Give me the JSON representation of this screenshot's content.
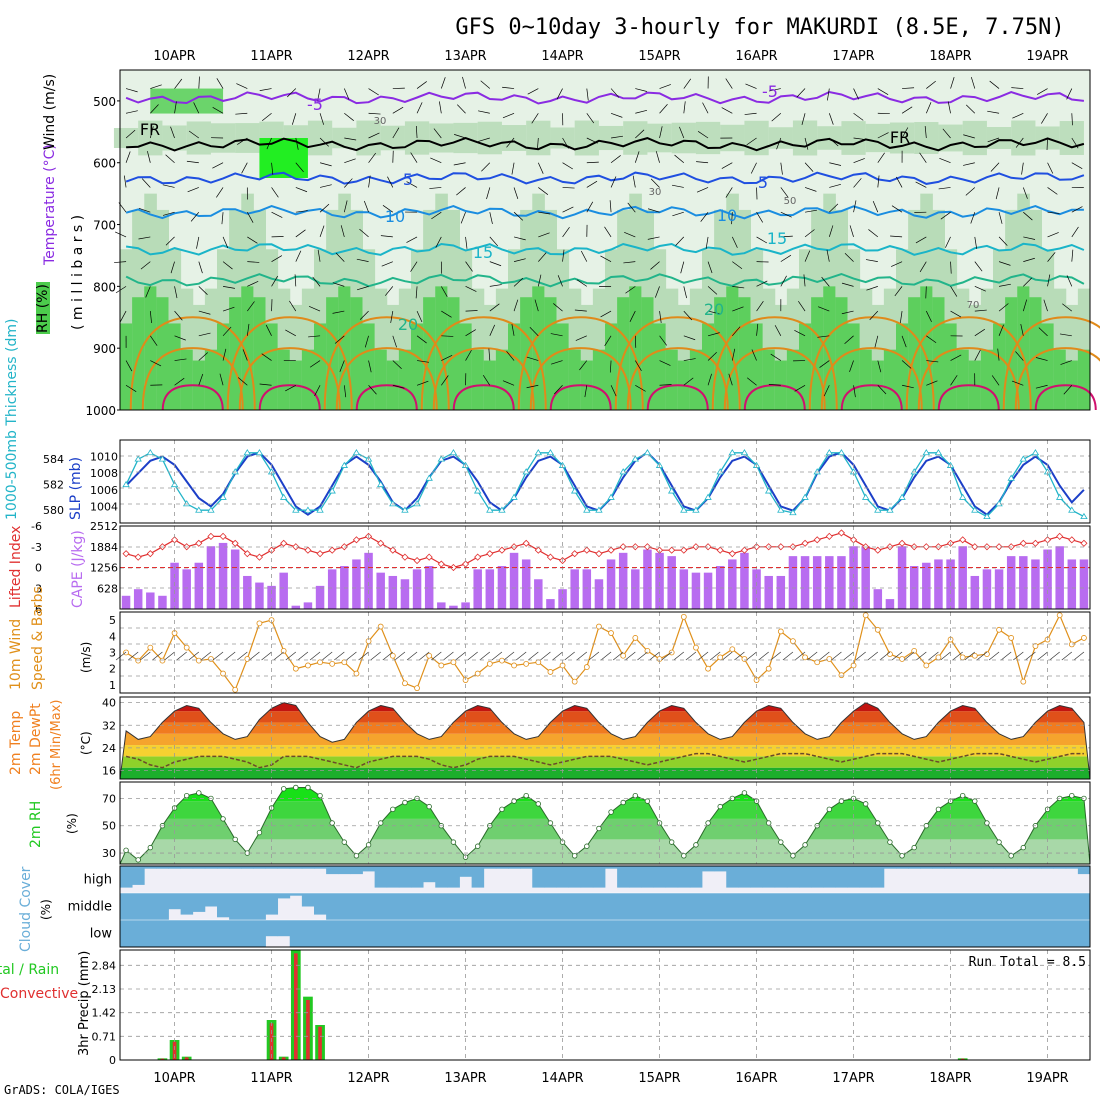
{
  "title": "GFS 0~10day 3-hourly for MAKURDI (8.5E, 7.75N)",
  "footer": "GrADS: COLA/IGES",
  "dates": [
    "10APR",
    "11APR",
    "12APR",
    "13APR",
    "14APR",
    "15APR",
    "16APR",
    "17APR",
    "18APR",
    "19APR"
  ],
  "colors": {
    "rh_dark": "#4ccc4c",
    "rh_mid": "#b8dcb8",
    "rh_light": "#e6f2e6",
    "rh_bright": "#22ee22",
    "t_neg": "#8a2be2",
    "t_zero": "#000000",
    "t_5": "#1f4fe0",
    "t_10": "#1a8de0",
    "t_15": "#1ab4c8",
    "t_20": "#22b48a",
    "t_25": "#e08a1a",
    "t_30": "#d0106e",
    "slp": "#1c3fc8",
    "thick": "#22b4c8",
    "cape": "#b86cf0",
    "li": "#e03030",
    "wind": "#e0901a",
    "temp_fill": "#f08020",
    "rh2m": "#22c822",
    "cloud": "#6aaed8",
    "cloud_bg": "#f0eff7",
    "precip_total": "#22c822",
    "precip_conv": "#e03030"
  },
  "panels": {
    "upper": {
      "ylabels": [
        "RH (%)",
        "Temperature (°C)",
        "Wind (m/s)",
        "( m i l l i b a r s )"
      ],
      "yticks": [
        "500",
        "600",
        "700",
        "800",
        "900",
        "1000"
      ],
      "contour_labels": [
        "-5",
        "-5",
        "FR",
        "FR",
        "5",
        "5",
        "10",
        "10",
        "15",
        "15",
        "20",
        "20",
        "30",
        "30",
        "50",
        "70"
      ]
    },
    "slp": {
      "ylabel_left": "1000-500mb Thickness (dm)",
      "ylabel_right": "SLP (mb)",
      "yticks_left": [
        "584",
        "582",
        "580"
      ],
      "yticks_right": [
        "1010",
        "1008",
        "1006",
        "1004"
      ]
    },
    "cape": {
      "ylabel_left": "Lifted Index",
      "ylabel_right": "CAPE (J/kg)",
      "yticks_left": [
        "-6",
        "-3",
        "0",
        "3",
        "6"
      ],
      "yticks_right": [
        "2512",
        "1884",
        "1256",
        "628"
      ]
    },
    "wind": {
      "ylabel1": "10m Wind",
      "ylabel2": "Speed & Barbs",
      "unit": "(m/s)",
      "yticks": [
        "5",
        "4",
        "3",
        "2",
        "1"
      ]
    },
    "temp": {
      "ylabel1": "2m Temp",
      "ylabel2": "2m DewPt",
      "ylabel3": "(6hr Min/Max)",
      "unit": "(°C)",
      "yticks": [
        "40",
        "32",
        "24",
        "16"
      ]
    },
    "rh": {
      "ylabel": "2m RH",
      "unit": "(%)",
      "yticks": [
        "70",
        "50",
        "30"
      ]
    },
    "cloud": {
      "ylabel": "Cloud Cover",
      "unit": "(%)",
      "levels": [
        "high",
        "middle",
        "low"
      ]
    },
    "precip": {
      "ylabel1": "Total / Rain",
      "ylabel2": "Convective",
      "ylabel3": "3hr Precip (mm)",
      "yticks": [
        "2.84",
        "2.13",
        "1.42",
        "0.71",
        "0"
      ],
      "run_total": "Run Total = 8.5"
    }
  },
  "chart_data": {
    "type": "meteogram",
    "time_step_hours": 3,
    "n_steps": 80,
    "slp": {
      "name": "SLP (mb)",
      "ylim": [
        1002,
        1012
      ],
      "values": [
        1006.5,
        1008,
        1009.5,
        1010,
        1009,
        1007,
        1005,
        1004,
        1005.5,
        1008,
        1010,
        1010.5,
        1009,
        1006.5,
        1004,
        1003,
        1004,
        1006.5,
        1009,
        1010,
        1009,
        1007,
        1004.5,
        1003.5,
        1005,
        1007.5,
        1009.5,
        1010,
        1009,
        1007,
        1004.5,
        1003.5,
        1005,
        1007.5,
        1009.5,
        1010,
        1009,
        1006.5,
        1004,
        1003.5,
        1005,
        1007.5,
        1009.5,
        1010.5,
        1009,
        1006.5,
        1004,
        1003.5,
        1005,
        1007.5,
        1009.5,
        1010,
        1009,
        1006.5,
        1004,
        1003.5,
        1005,
        1008,
        1010,
        1010.5,
        1009,
        1006.5,
        1004,
        1003.5,
        1005,
        1007.5,
        1009.5,
        1010,
        1009,
        1006.5,
        1004,
        1003,
        1004.5,
        1007,
        1009,
        1010,
        1009,
        1006.5,
        1004.5,
        1006
      ]
    },
    "thickness": {
      "name": "1000-500mb Thickness (dm)",
      "ylim": [
        579,
        585.5
      ],
      "values": [
        582,
        584,
        584.5,
        584,
        582,
        580.5,
        580,
        580,
        581,
        583,
        584.5,
        584.5,
        583,
        581,
        580,
        580,
        580,
        581.5,
        583.5,
        584.5,
        584,
        582,
        580.5,
        580,
        580.5,
        582.5,
        584,
        584.5,
        583.5,
        581.5,
        580,
        580,
        581,
        583,
        584.5,
        584.5,
        583.5,
        581.5,
        580,
        580,
        581,
        583,
        584,
        584.5,
        583.5,
        581.5,
        580,
        580,
        581,
        583,
        584.5,
        584.5,
        583.5,
        581.5,
        580,
        579.8,
        581,
        583,
        584.5,
        584.5,
        583,
        581,
        580,
        580,
        581,
        583,
        584.5,
        584.5,
        583.5,
        581,
        580,
        579.5,
        580.5,
        582.5,
        584,
        584.5,
        583,
        581,
        580,
        579.5
      ]
    },
    "cape": {
      "name": "CAPE (J/kg)",
      "ylim": [
        0,
        2512
      ],
      "values": [
        400,
        600,
        500,
        400,
        1400,
        1200,
        1400,
        1900,
        2000,
        1800,
        1000,
        800,
        700,
        1100,
        100,
        200,
        700,
        1200,
        1300,
        1500,
        1700,
        1100,
        1000,
        900,
        1200,
        1300,
        200,
        100,
        200,
        1200,
        1200,
        1300,
        1700,
        1500,
        900,
        300,
        600,
        1200,
        1200,
        900,
        1500,
        1700,
        1200,
        1800,
        1700,
        1600,
        1200,
        1100,
        1100,
        1300,
        1500,
        1700,
        1200,
        1000,
        1000,
        1600,
        1600,
        1600,
        1600,
        1600,
        1900,
        1900,
        600,
        300,
        1900,
        1300,
        1400,
        1500,
        1500,
        1900,
        1000,
        1200,
        1200,
        1600,
        1600,
        1500,
        1800,
        1900,
        1500,
        1500
      ]
    },
    "lifted_index": {
      "name": "Lifted Index",
      "ylim": [
        6,
        -6
      ],
      "values": [
        -2,
        -1.5,
        -2,
        -3,
        -4,
        -3,
        -3.5,
        -4.5,
        -4.5,
        -3.5,
        -2,
        -1.5,
        -2.5,
        -3.5,
        -3,
        -2.5,
        -2,
        -2.5,
        -3,
        -4,
        -4.5,
        -3.5,
        -2.5,
        -1.5,
        -1,
        -1.5,
        -0.5,
        0,
        -0.5,
        -1.5,
        -2,
        -2.5,
        -3,
        -3.5,
        -2.5,
        -1.5,
        -1,
        -2,
        -2.5,
        -2,
        -2.5,
        -3,
        -3,
        -3,
        -2.5,
        -2.5,
        -2.5,
        -3,
        -3,
        -2.5,
        -2,
        -2.5,
        -3,
        -3,
        -3,
        -3,
        -3.5,
        -4,
        -4.5,
        -5,
        -4,
        -3,
        -2.5,
        -3,
        -3.5,
        -3,
        -3,
        -3,
        -3.5,
        -4,
        -3,
        -3,
        -3,
        -3,
        -3.5,
        -3.5,
        -4,
        -4.5,
        -4,
        -3.5
      ]
    },
    "wind_speed": {
      "name": "10m Wind Speed (m/s)",
      "ylim": [
        0.5,
        5.5
      ],
      "values": [
        3,
        2.5,
        3.3,
        2.5,
        4.2,
        3.3,
        2.5,
        2.6,
        1.7,
        0.7,
        2.6,
        4.8,
        5,
        3.1,
        2,
        2.2,
        2.4,
        2.3,
        2.4,
        1.7,
        3.7,
        4.6,
        2.8,
        1.1,
        0.8,
        2.8,
        2.2,
        2.4,
        1.3,
        1.7,
        2.3,
        2.5,
        2.2,
        2.3,
        2.4,
        1.8,
        2.2,
        1.2,
        2.1,
        4.6,
        4.2,
        2.8,
        3.9,
        3.1,
        2.6,
        3,
        5.2,
        3.3,
        2,
        2.7,
        3.2,
        2.6,
        1.3,
        2,
        4.3,
        3.7,
        2.7,
        2.4,
        2.6,
        1.6,
        2.2,
        5.3,
        4.4,
        2.9,
        2.6,
        3.1,
        2.2,
        2.7,
        3.8,
        2.7,
        2.8,
        2.9,
        4.4,
        3.9,
        1.2,
        3.4,
        3.8,
        5.3,
        3.5,
        3.9
      ]
    },
    "temp_2m": {
      "name": "2m Temp (°C)",
      "ylim": [
        13,
        42
      ],
      "values": [
        30,
        27,
        28,
        33,
        37,
        39,
        38,
        33,
        29,
        27,
        28,
        34,
        38,
        40,
        39,
        33,
        28,
        26,
        27,
        33,
        37,
        39,
        38,
        33,
        29,
        27,
        28,
        33,
        37,
        39,
        38,
        33,
        29,
        27,
        28,
        33,
        37,
        39,
        38,
        33,
        29,
        27,
        28,
        33,
        37,
        39,
        38,
        33,
        29,
        27,
        28,
        33,
        37,
        39,
        38,
        33,
        29,
        27,
        28,
        33,
        37,
        40,
        38,
        33,
        29,
        27,
        28,
        33,
        37,
        39,
        38,
        33,
        29,
        27,
        28,
        33,
        37,
        39,
        38,
        33
      ]
    },
    "dewpt_2m": {
      "name": "2m DewPt (°C)",
      "ylim": [
        13,
        42
      ],
      "values": [
        21,
        20,
        18,
        17,
        19,
        20,
        21,
        21,
        21,
        20,
        19,
        17,
        18,
        21,
        21,
        21,
        20,
        19,
        18,
        17,
        19,
        20,
        21,
        21,
        21,
        20,
        18,
        17,
        18,
        20,
        21,
        21,
        21,
        20,
        19,
        18,
        19,
        20,
        21,
        21,
        21,
        20,
        19,
        18,
        19,
        20,
        21,
        22,
        22,
        21,
        20,
        19,
        20,
        21,
        22,
        22,
        22,
        21,
        20,
        19,
        20,
        21,
        22,
        22,
        22,
        21,
        20,
        19,
        20,
        21,
        22,
        22,
        22,
        21,
        20,
        19,
        20,
        21,
        22,
        22
      ]
    },
    "rh_2m": {
      "name": "2m RH (%)",
      "ylim": [
        22,
        82
      ],
      "values": [
        32,
        25,
        34,
        50,
        63,
        72,
        74,
        70,
        55,
        40,
        30,
        45,
        63,
        77,
        78,
        78,
        72,
        52,
        38,
        28,
        36,
        52,
        62,
        67,
        70,
        64,
        50,
        38,
        27,
        35,
        50,
        62,
        68,
        72,
        66,
        52,
        38,
        28,
        35,
        48,
        60,
        67,
        72,
        68,
        52,
        38,
        28,
        36,
        52,
        64,
        70,
        74,
        68,
        52,
        38,
        28,
        36,
        50,
        62,
        68,
        70,
        66,
        52,
        38,
        28,
        34,
        50,
        62,
        68,
        72,
        68,
        52,
        38,
        28,
        34,
        50,
        62,
        70,
        72,
        70
      ]
    },
    "cloud_high": {
      "name": "High cloud (%)",
      "ylim": [
        0,
        100
      ],
      "values": [
        80,
        70,
        10,
        10,
        10,
        10,
        10,
        10,
        10,
        10,
        10,
        10,
        10,
        10,
        10,
        10,
        10,
        30,
        30,
        30,
        20,
        80,
        80,
        80,
        80,
        60,
        80,
        80,
        40,
        80,
        10,
        10,
        10,
        10,
        80,
        80,
        80,
        80,
        80,
        80,
        10,
        80,
        80,
        80,
        80,
        80,
        80,
        80,
        20,
        20,
        80,
        80,
        80,
        80,
        80,
        80,
        80,
        80,
        80,
        80,
        80,
        80,
        80,
        10,
        10,
        10,
        10,
        10,
        10,
        10,
        10,
        10,
        10,
        10,
        10,
        10,
        10,
        10,
        10,
        30
      ]
    },
    "cloud_mid": {
      "name": "Middle cloud (%)",
      "ylim": [
        0,
        100
      ],
      "values": [
        100,
        100,
        100,
        100,
        60,
        80,
        70,
        50,
        90,
        100,
        100,
        100,
        80,
        20,
        10,
        50,
        80,
        100,
        100,
        100,
        100,
        100,
        100,
        100,
        100,
        100,
        100,
        100,
        100,
        100,
        100,
        100,
        100,
        100,
        100,
        100,
        100,
        100,
        100,
        100,
        100,
        100,
        100,
        100,
        100,
        100,
        100,
        100,
        100,
        100,
        100,
        100,
        100,
        100,
        100,
        100,
        100,
        100,
        100,
        100,
        100,
        100,
        100,
        100,
        100,
        100,
        100,
        100,
        100,
        100,
        100,
        100,
        100,
        100,
        100,
        100,
        100,
        100,
        100,
        100
      ]
    },
    "cloud_low": {
      "name": "Low cloud (%)",
      "ylim": [
        0,
        100
      ],
      "values": [
        100,
        100,
        100,
        100,
        100,
        100,
        100,
        100,
        100,
        100,
        100,
        100,
        60,
        60,
        100,
        100,
        100,
        100,
        100,
        100,
        100,
        100,
        100,
        100,
        100,
        100,
        100,
        100,
        100,
        100,
        100,
        100,
        100,
        100,
        100,
        100,
        100,
        100,
        100,
        100,
        100,
        100,
        100,
        100,
        100,
        100,
        100,
        100,
        100,
        100,
        100,
        100,
        100,
        100,
        100,
        100,
        100,
        100,
        100,
        100,
        100,
        100,
        100,
        100,
        100,
        100,
        100,
        100,
        100,
        100,
        100,
        100,
        100,
        100,
        100,
        100,
        100,
        100,
        100,
        100
      ]
    },
    "precip_total": {
      "name": "3hr Precip (mm)",
      "ylim": [
        0,
        3.3
      ],
      "values": [
        0,
        0,
        0,
        0.05,
        0.6,
        0.1,
        0,
        0,
        0,
        0,
        0,
        0,
        1.2,
        0.1,
        3.3,
        1.9,
        1.05,
        0,
        0,
        0,
        0,
        0,
        0,
        0,
        0,
        0,
        0,
        0,
        0,
        0,
        0,
        0,
        0,
        0,
        0,
        0,
        0,
        0,
        0,
        0,
        0,
        0,
        0,
        0,
        0,
        0,
        0,
        0,
        0,
        0,
        0,
        0,
        0,
        0,
        0,
        0,
        0,
        0,
        0,
        0,
        0,
        0,
        0,
        0,
        0,
        0,
        0,
        0,
        0,
        0.05,
        0,
        0,
        0,
        0,
        0,
        0,
        0,
        0,
        0,
        0
      ]
    },
    "precip_conv": {
      "name": "Convective (mm)",
      "ylim": [
        0,
        3.3
      ],
      "values": [
        0,
        0,
        0,
        0.04,
        0.55,
        0.08,
        0,
        0,
        0,
        0,
        0,
        0,
        1.1,
        0.08,
        3.2,
        1.8,
        1.0,
        0,
        0,
        0,
        0,
        0,
        0,
        0,
        0,
        0,
        0,
        0,
        0,
        0,
        0,
        0,
        0,
        0,
        0,
        0,
        0,
        0,
        0,
        0,
        0,
        0,
        0,
        0,
        0,
        0,
        0,
        0,
        0,
        0,
        0,
        0,
        0,
        0,
        0,
        0,
        0,
        0,
        0,
        0,
        0,
        0,
        0,
        0,
        0,
        0,
        0,
        0,
        0,
        0.04,
        0,
        0,
        0,
        0,
        0,
        0,
        0,
        0,
        0,
        0
      ]
    }
  }
}
